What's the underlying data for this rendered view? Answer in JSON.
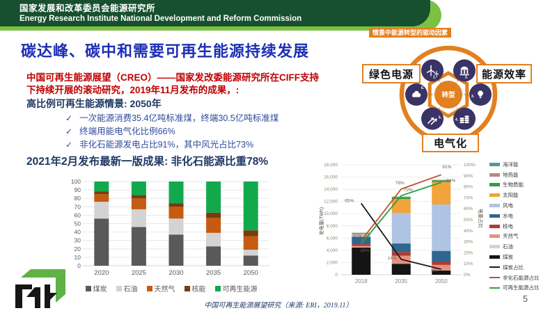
{
  "header": {
    "org_cn": "国家发展和改革委员会能源研究所",
    "org_en": "Energy Research Institute National Development and Reform Commission"
  },
  "title": "碳达峰、碳中和需要可再生能源持续发展",
  "intro": {
    "lead": "中国可再生能源展望（CREO）——国家发改委能源研究所在CIFF支持下持续开展的滚动研究，2019年11月发布的成果，:",
    "scenario_heading": "高比例可再生能源情景: 2050年",
    "checkmark": "✓",
    "bullets": [
      "一次能源消费35.4亿吨标准煤，终端30.5亿吨标准煤",
      "终端用能电气化比例66%",
      "非化石能源发电占比91%，其中风光占比73%"
    ],
    "update": "2021年2月发布最新一版成果: 非化石能源比重78%"
  },
  "diagram": {
    "caption": "情景中能源转型的驱动因素",
    "center": "转型",
    "labels": {
      "left": "绿色电源",
      "right": "能源效率",
      "bottom": "电气化"
    },
    "nodes": [
      {
        "num": "1.",
        "icon": "wind-turbine"
      },
      {
        "num": "2.",
        "icon": "bank"
      },
      {
        "num": "3.",
        "icon": "light-bulb"
      },
      {
        "num": "4.",
        "icon": "coins"
      },
      {
        "num": "5.",
        "icon": "arrows"
      },
      {
        "num": "6.",
        "icon": "cloud"
      }
    ]
  },
  "chart_data": [
    {
      "type": "bar",
      "stacked": true,
      "title": "",
      "xlabel": "",
      "ylabel": "",
      "categories": [
        "2020",
        "2025",
        "2030",
        "2035",
        "2050"
      ],
      "series": [
        {
          "name": "煤炭",
          "color": "#595959",
          "values": [
            56,
            46,
            37,
            23,
            12
          ]
        },
        {
          "name": "石油",
          "color": "#D3D3D3",
          "values": [
            20,
            21,
            19,
            16,
            7
          ]
        },
        {
          "name": "天然气",
          "color": "#C55A11",
          "values": [
            9,
            13,
            14,
            18,
            16
          ]
        },
        {
          "name": "核能",
          "color": "#7B3A10",
          "values": [
            3,
            4,
            4,
            6,
            7
          ]
        },
        {
          "name": "可再生能源",
          "color": "#12A94D",
          "values": [
            12,
            16,
            26,
            37,
            58
          ]
        }
      ],
      "ylim": [
        0,
        100
      ],
      "ytick_step": 10,
      "grid": true,
      "legend_position": "bottom"
    },
    {
      "type": "bar-line-combo",
      "stacked": true,
      "categories": [
        "2018",
        "2035",
        "2050"
      ],
      "ylabel_left": "发电量(TWh)",
      "ylabel_right": "电量占比",
      "ylim_left": [
        0,
        18000
      ],
      "ytick_step_left": 2000,
      "ylim_right_pct": [
        0,
        100
      ],
      "ytick_step_right_pct": 10,
      "bar_series": [
        {
          "name": "煤炭",
          "color": "#141414",
          "values": [
            4450,
            1800,
            700
          ]
        },
        {
          "name": "石油",
          "color": "#D6D2CB",
          "values": [
            30,
            20,
            10
          ]
        },
        {
          "name": "天然气",
          "color": "#E8907F",
          "values": [
            220,
            1300,
            900
          ]
        },
        {
          "name": "核电",
          "color": "#B03A30",
          "values": [
            300,
            600,
            500
          ]
        },
        {
          "name": "水电",
          "color": "#2F6690",
          "values": [
            1230,
            1400,
            1800
          ]
        },
        {
          "name": "风电",
          "color": "#AFC4E2",
          "values": [
            370,
            5000,
            7600
          ]
        },
        {
          "name": "太阳能",
          "color": "#F2A33A",
          "values": [
            180,
            2300,
            3700
          ]
        },
        {
          "name": "生物质能",
          "color": "#2E9E44",
          "values": [
            90,
            300,
            250
          ]
        },
        {
          "name": "地热能",
          "color": "#B58A86",
          "values": [
            10,
            50,
            50
          ]
        },
        {
          "name": "海洋能",
          "color": "#4C9C9C",
          "values": [
            5,
            30,
            40
          ]
        }
      ],
      "line_series": [
        {
          "name": "煤炭占比",
          "color": "#1A1A1A",
          "values": [
            65,
            14,
            5
          ],
          "labels": [
            "65%",
            "14%",
            "5%"
          ]
        },
        {
          "name": "非化石能源占比",
          "color": "#C0502B",
          "values": [
            31,
            78,
            91
          ],
          "labels": [
            "31%",
            "78%",
            "91%"
          ]
        },
        {
          "name": "可再生能源占比",
          "color": "#2E9E44",
          "values": [
            28,
            72,
            84
          ],
          "labels": [
            "28%",
            "72%",
            "84%"
          ]
        }
      ],
      "legend_order": [
        "海洋能",
        "地热能",
        "生物质能",
        "太阳能",
        "风电",
        "水电",
        "核电",
        "天然气",
        "石油",
        "煤炭",
        "煤炭占比",
        "非化石能源占比",
        "可再生能源占比"
      ],
      "legend_position": "right",
      "grid": true
    }
  ],
  "footer": {
    "source": "中国可再生能源展望研究（来源: ERI，2019.11）",
    "page": "5"
  },
  "theme": {
    "header_dark_green": "#17502E",
    "header_light_green": "#7CC142",
    "title_blue": "#1C2FB5",
    "lead_red": "#C00000",
    "navy": "#1F3864",
    "bullet_blue": "#2D4B9B",
    "accent_orange": "#E2801F",
    "node_purple": "#3A3366",
    "logo_green": "#5EB344"
  }
}
